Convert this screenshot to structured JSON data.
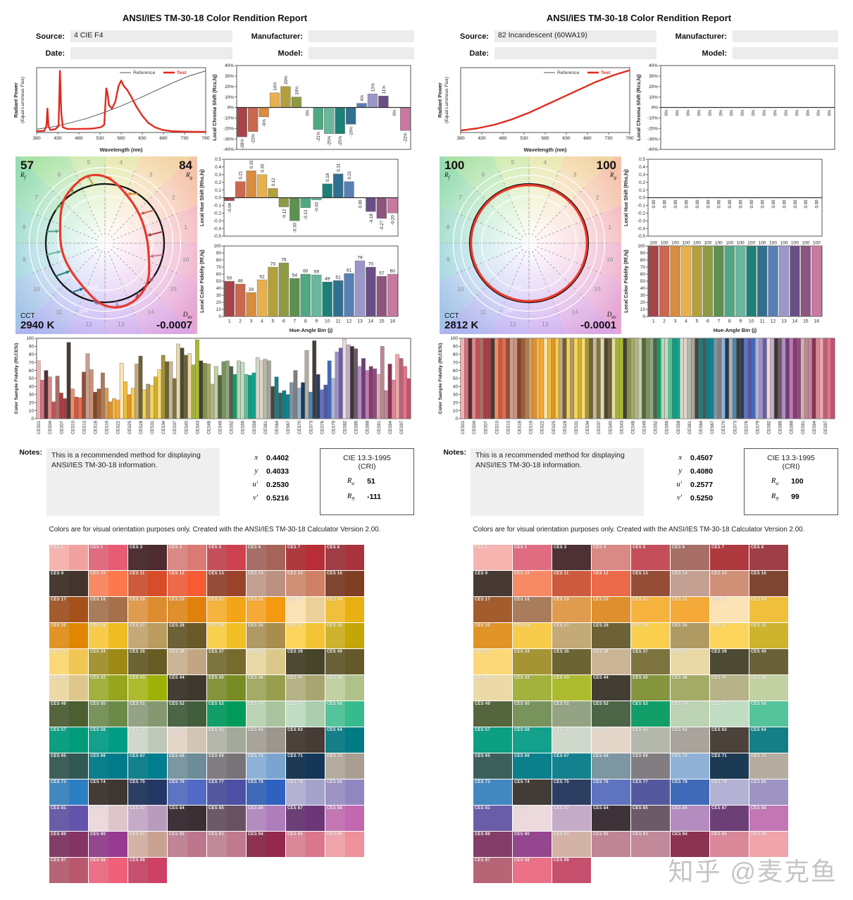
{
  "report_title": "ANSI/IES TM-30-18 Color Rendition Report",
  "meta_labels": {
    "source": "Source:",
    "date": "Date:",
    "manufacturer": "Manufacturer:",
    "model": "Model:"
  },
  "notes_label": "Notes:",
  "notes_text": "This is a recommended method for displaying ANSI/IES TM-30-18 information.",
  "footer": "Colors are for visual orientation purposes only. Created with the ANSI/IES TM-30-18 Calculator Version 2.00.",
  "watermark": "知乎 @麦克鱼",
  "cvg_labels": {
    "rf": [
      "R",
      "f"
    ],
    "rg": [
      "R",
      "g"
    ],
    "cct": "CCT",
    "duv": [
      "D",
      "uv"
    ]
  },
  "cri_labels": {
    "ra": [
      "R",
      "a"
    ],
    "r9": [
      "R",
      "9"
    ]
  },
  "cri_title1": "CIE 13.3-1995",
  "cri_title2": "(CRI)",
  "colors": {
    "test_red": "#e02b20",
    "reference_gray": "#555555",
    "input_box": "#ececec"
  },
  "bin_colors": [
    "#a6444a",
    "#c9674f",
    "#d98b3e",
    "#e7b04e",
    "#b3a03c",
    "#8f9a44",
    "#5c9150",
    "#4fa882",
    "#6bb79e",
    "#1d8076",
    "#31708e",
    "#5a7fb4",
    "#9b97c9",
    "#6a4f87",
    "#8e5480",
    "#c8799f"
  ],
  "cvg_wheel_colors": [
    "#f3b3b8",
    "#f5c3ab",
    "#f2d3a2",
    "#e3e39e",
    "#c8e6a0",
    "#abe2a6",
    "#97dcb2",
    "#93d8c4",
    "#97d2da",
    "#a3c4e8",
    "#aeb4ee",
    "#bcaaf2",
    "#caa6ee",
    "#daa6e2",
    "#e6a6d4",
    "#eeaac6"
  ],
  "ces_xticks": [
    "CES01",
    "CES04",
    "CES07",
    "CES10",
    "CES13",
    "CES16",
    "CES19",
    "CES22",
    "CES25",
    "CES28",
    "CES31",
    "CES34",
    "CES37",
    "CES40",
    "CES43",
    "CES46",
    "CES49",
    "CES52",
    "CES55",
    "CES58",
    "CES61",
    "CES64",
    "CES67",
    "CES70",
    "CES73",
    "CES76",
    "CES79",
    "CES82",
    "CES85",
    "CES88",
    "CES91",
    "CES94",
    "CES97"
  ],
  "swatches": {
    "prefix": "CES ",
    "count": 99,
    "left_two_tone": true,
    "right_two_tone": false,
    "colors": [
      "#f6b4b1",
      "#df6c80",
      "#4e3134",
      "#d98a84",
      "#c44f5a",
      "#a76f66",
      "#ae3a40",
      "#9f3e46",
      "#463a33",
      "#f68a64",
      "#cd5a3c",
      "#ec6a49",
      "#964d38",
      "#c3a092",
      "#d09078",
      "#7e4630",
      "#a25c2e",
      "#a97c5c",
      "#df9c4e",
      "#df8f2d",
      "#f6b43e",
      "#f5a938",
      "#fbe3b5",
      "#f0c03c",
      "#e09426",
      "#f7cc4d",
      "#c4aa77",
      "#6d6136",
      "#f8cf4e",
      "#b09a64",
      "#fbd45c",
      "#cdb32e",
      "#fbd878",
      "#a59434",
      "#6d6434",
      "#cbb597",
      "#7d7440",
      "#e9d9a6",
      "#4d4a34",
      "#6b6139",
      "#ecd9a8",
      "#a3b13f",
      "#adbb2e",
      "#433e34",
      "#85953d",
      "#a4ab66",
      "#b5b387",
      "#c2d0a2",
      "#55653e",
      "#79935d",
      "#93a383",
      "#4c6547",
      "#119e68",
      "#bcd3b4",
      "#c0ddc3",
      "#55c39c",
      "#0d9f82",
      "#14a18c",
      "#cfd8cb",
      "#e3d6c8",
      "#b3b8ab",
      "#a8a49b",
      "#4b423c",
      "#157f87",
      "#3d5f5a",
      "#0b7f8c",
      "#14818f",
      "#7d97a2",
      "#817d80",
      "#8fb2d6",
      "#1d3a55",
      "#b5aca0",
      "#4287c0",
      "#423b36",
      "#2c3d62",
      "#5f74c0",
      "#54589f",
      "#3f6ab8",
      "#b3b2d4",
      "#9d94c4",
      "#6a5da8",
      "#ecd9dc",
      "#c4abc8",
      "#3e3338",
      "#6c5a68",
      "#b48cc0",
      "#6d3f77",
      "#c277b4",
      "#823e66",
      "#94468e",
      "#d3b3a5",
      "#c08597",
      "#c2899a",
      "#8c3352",
      "#da8799",
      "#f0a4ab",
      "#b66577",
      "#ea7187",
      "#c54f6d"
    ]
  },
  "reports": [
    {
      "source": "4 CIE F4",
      "date": "",
      "manufacturer": "",
      "model": "",
      "chromaticity": [
        [
          "x",
          "0.4402"
        ],
        [
          "y",
          "0.4033"
        ],
        [
          "u'",
          "0.2530"
        ],
        [
          "v'",
          "0.5216"
        ]
      ],
      "cri_ra": "51",
      "cri_r9": "-111"
    },
    {
      "source": "82 Incandescent (60WA19)",
      "date": "",
      "manufacturer": "",
      "model": "",
      "chromaticity": [
        [
          "x",
          "0.4507"
        ],
        [
          "y",
          "0.4080"
        ],
        [
          "u'",
          "0.2577"
        ],
        [
          "v'",
          "0.5250"
        ]
      ],
      "cri_ra": "100",
      "cri_r9": "99"
    }
  ],
  "chart_data": [
    {
      "id": "L-spd",
      "type": "line",
      "ylabel": "Radiant Power",
      "ylabel2": "(Equal Luminous Flux)",
      "xlabel": "Wavelength (nm)",
      "xlim": [
        380,
        780
      ],
      "xticks": [
        380,
        430,
        480,
        530,
        580,
        630,
        680,
        730,
        780
      ],
      "legend": [
        "Reference",
        "Test"
      ],
      "legend_position": "top-right",
      "grid": false,
      "series": [
        {
          "name": "Reference",
          "points": [
            [
              0,
              0.05
            ],
            [
              0.1,
              0.09
            ],
            [
              0.2,
              0.15
            ],
            [
              0.3,
              0.22
            ],
            [
              0.4,
              0.31
            ],
            [
              0.5,
              0.41
            ],
            [
              0.6,
              0.52
            ],
            [
              0.7,
              0.64
            ],
            [
              0.8,
              0.76
            ],
            [
              0.9,
              0.87
            ],
            [
              1,
              0.95
            ]
          ]
        },
        {
          "name": "Test",
          "points": [
            [
              0,
              0.02
            ],
            [
              0.045,
              0.025
            ],
            [
              0.058,
              0.1
            ],
            [
              0.064,
              0.37
            ],
            [
              0.07,
              0.1
            ],
            [
              0.08,
              0.04
            ],
            [
              0.11,
              0.05
            ],
            [
              0.13,
              0.1
            ],
            [
              0.138,
              0.95
            ],
            [
              0.146,
              0.3
            ],
            [
              0.155,
              0.08
            ],
            [
              0.18,
              0.055
            ],
            [
              0.25,
              0.055
            ],
            [
              0.33,
              0.06
            ],
            [
              0.38,
              0.08
            ],
            [
              0.4,
              0.12
            ],
            [
              0.412,
              0.68
            ],
            [
              0.42,
              0.6
            ],
            [
              0.428,
              0.42
            ],
            [
              0.445,
              0.37
            ],
            [
              0.465,
              0.47
            ],
            [
              0.485,
              0.72
            ],
            [
              0.5,
              0.8
            ],
            [
              0.515,
              0.72
            ],
            [
              0.535,
              0.66
            ],
            [
              0.56,
              0.55
            ],
            [
              0.59,
              0.4
            ],
            [
              0.625,
              0.26
            ],
            [
              0.66,
              0.15
            ],
            [
              0.7,
              0.08
            ],
            [
              0.745,
              0.04
            ],
            [
              0.8,
              0.02
            ],
            [
              0.9,
              0.012
            ],
            [
              1,
              0.01
            ]
          ]
        }
      ]
    },
    {
      "id": "L-chroma",
      "type": "bar",
      "ylabel": "Local Chroma Shift (Rcs,hj)",
      "ylim": [
        -40,
        40
      ],
      "ystep": 10,
      "unit": "%",
      "categories": [
        1,
        2,
        3,
        4,
        5,
        6,
        7,
        8,
        9,
        10,
        11,
        12,
        13,
        14,
        15,
        16
      ],
      "values": [
        -28,
        -23,
        -9,
        14,
        20,
        10,
        0,
        -21,
        -25,
        -25,
        -16,
        4,
        13,
        11,
        0,
        -22
      ]
    },
    {
      "id": "L-hue",
      "type": "bar",
      "ylabel": "Local Hue Shift (Rhs,hj)",
      "ylim": [
        -0.5,
        0.5
      ],
      "ystep": 0.1,
      "categories": [
        1,
        2,
        3,
        4,
        5,
        6,
        7,
        8,
        9,
        10,
        11,
        12,
        13,
        14,
        15,
        16
      ],
      "values": [
        -0.04,
        0.21,
        0.35,
        0.3,
        0.12,
        -0.12,
        -0.3,
        -0.13,
        -0.03,
        0.18,
        0.31,
        0.21,
        0.0,
        -0.18,
        -0.27,
        -0.2
      ]
    },
    {
      "id": "L-fid",
      "type": "bar",
      "ylabel": "Local Color Fidelity (Rf,hj)",
      "xlabel": "Hue-Angle Bin (j)",
      "ylim": [
        0,
        100
      ],
      "ystep": 10,
      "categories": [
        1,
        2,
        3,
        4,
        5,
        6,
        7,
        8,
        9,
        10,
        11,
        12,
        13,
        14,
        15,
        16
      ],
      "values": [
        50,
        46,
        34,
        52,
        70,
        76,
        54,
        60,
        59,
        49,
        51,
        61,
        79,
        70,
        57,
        60
      ]
    },
    {
      "id": "L-ces",
      "type": "bar",
      "ylabel": "Color Sample Fidelity (Rf,CESi)",
      "ylim": [
        0,
        100
      ],
      "ystep": 10,
      "values": [
        72,
        48,
        60,
        52,
        21,
        53,
        32,
        25,
        95,
        37,
        27,
        26,
        58,
        81,
        61,
        33,
        37,
        57,
        38,
        21,
        25,
        23,
        69,
        46,
        30,
        38,
        68,
        78,
        36,
        43,
        41,
        52,
        61,
        79,
        71,
        71,
        50,
        93,
        88,
        79,
        81,
        67,
        98,
        72,
        69,
        68,
        43,
        65,
        54,
        71,
        72,
        65,
        55,
        72,
        70,
        55,
        54,
        57,
        76,
        72,
        74,
        72,
        40,
        52,
        32,
        35,
        30,
        45,
        60,
        38,
        45,
        85,
        33,
        97,
        55,
        36,
        42,
        72,
        50,
        83,
        88,
        99,
        92,
        90,
        87,
        65,
        75,
        60,
        65,
        62,
        55,
        90,
        35,
        68,
        48,
        80,
        75,
        65,
        50
      ]
    },
    {
      "id": "L-cvg",
      "type": "polar",
      "rf": 57,
      "rg": 84,
      "cct": "2940 K",
      "duv": "-0.0007",
      "ring_label": "20%",
      "bins": [
        1,
        2,
        3,
        4,
        5,
        6,
        7,
        8,
        9,
        10,
        11,
        12,
        13,
        14,
        15,
        16
      ]
    },
    {
      "id": "R-spd",
      "type": "line",
      "ylabel": "Radiant Power",
      "ylabel2": "(Equal Luminous Flux)",
      "xlabel": "Wavelength (nm)",
      "xlim": [
        380,
        780
      ],
      "xticks": [
        380,
        430,
        480,
        530,
        580,
        630,
        680,
        730,
        780
      ],
      "legend": [
        "Reference",
        "Test"
      ],
      "legend_position": "top-right",
      "grid": false,
      "series": [
        {
          "name": "Reference",
          "points": [
            [
              0,
              0.03
            ],
            [
              0.1,
              0.065
            ],
            [
              0.2,
              0.12
            ],
            [
              0.3,
              0.2
            ],
            [
              0.4,
              0.3
            ],
            [
              0.5,
              0.42
            ],
            [
              0.6,
              0.54
            ],
            [
              0.7,
              0.66
            ],
            [
              0.8,
              0.78
            ],
            [
              0.9,
              0.88
            ],
            [
              1,
              0.96
            ]
          ]
        },
        {
          "name": "Test",
          "points": [
            [
              0,
              0.03
            ],
            [
              0.1,
              0.065
            ],
            [
              0.2,
              0.12
            ],
            [
              0.3,
              0.2
            ],
            [
              0.4,
              0.3
            ],
            [
              0.5,
              0.42
            ],
            [
              0.6,
              0.54
            ],
            [
              0.7,
              0.66
            ],
            [
              0.8,
              0.78
            ],
            [
              0.9,
              0.88
            ],
            [
              1,
              0.96
            ]
          ]
        }
      ]
    },
    {
      "id": "R-chroma",
      "type": "bar",
      "ylabel": "Local Chroma Shift (Rcs,hj)",
      "ylim": [
        -40,
        40
      ],
      "ystep": 10,
      "unit": "%",
      "categories": [
        1,
        2,
        3,
        4,
        5,
        6,
        7,
        8,
        9,
        10,
        11,
        12,
        13,
        14,
        15,
        16
      ],
      "values": [
        0,
        0,
        0,
        0,
        0,
        0,
        0,
        0,
        0,
        0,
        0,
        0,
        0,
        0,
        0,
        0
      ]
    },
    {
      "id": "R-hue",
      "type": "bar",
      "ylabel": "Local Hue Shift (Rhs,hj)",
      "ylim": [
        -0.5,
        0.5
      ],
      "ystep": 0.1,
      "categories": [
        1,
        2,
        3,
        4,
        5,
        6,
        7,
        8,
        9,
        10,
        11,
        12,
        13,
        14,
        15,
        16
      ],
      "values": [
        0,
        0,
        0,
        0,
        0,
        0,
        0,
        0,
        0,
        0,
        0,
        0,
        0,
        0,
        0,
        0
      ]
    },
    {
      "id": "R-fid",
      "type": "bar",
      "ylabel": "Local Color Fidelity (Rf,hj)",
      "xlabel": "Hue-Angle Bin (j)",
      "ylim": [
        0,
        100
      ],
      "ystep": 10,
      "categories": [
        1,
        2,
        3,
        4,
        5,
        6,
        7,
        8,
        9,
        10,
        11,
        12,
        13,
        14,
        15,
        16
      ],
      "uniform_value": 100,
      "count": 16
    },
    {
      "id": "R-ces",
      "type": "bar",
      "ylabel": "Color Sample Fidelity (Rf,CESi)",
      "ylim": [
        0,
        100
      ],
      "ystep": 10,
      "uniform_value": 100,
      "count": 99
    },
    {
      "id": "R-cvg",
      "type": "polar",
      "rf": 100,
      "rg": 100,
      "cct": "2812 K",
      "duv": "-0.0001",
      "ring_label": "20%",
      "bins": [
        1,
        2,
        3,
        4,
        5,
        6,
        7,
        8,
        9,
        10,
        11,
        12,
        13,
        14,
        15,
        16
      ]
    }
  ]
}
